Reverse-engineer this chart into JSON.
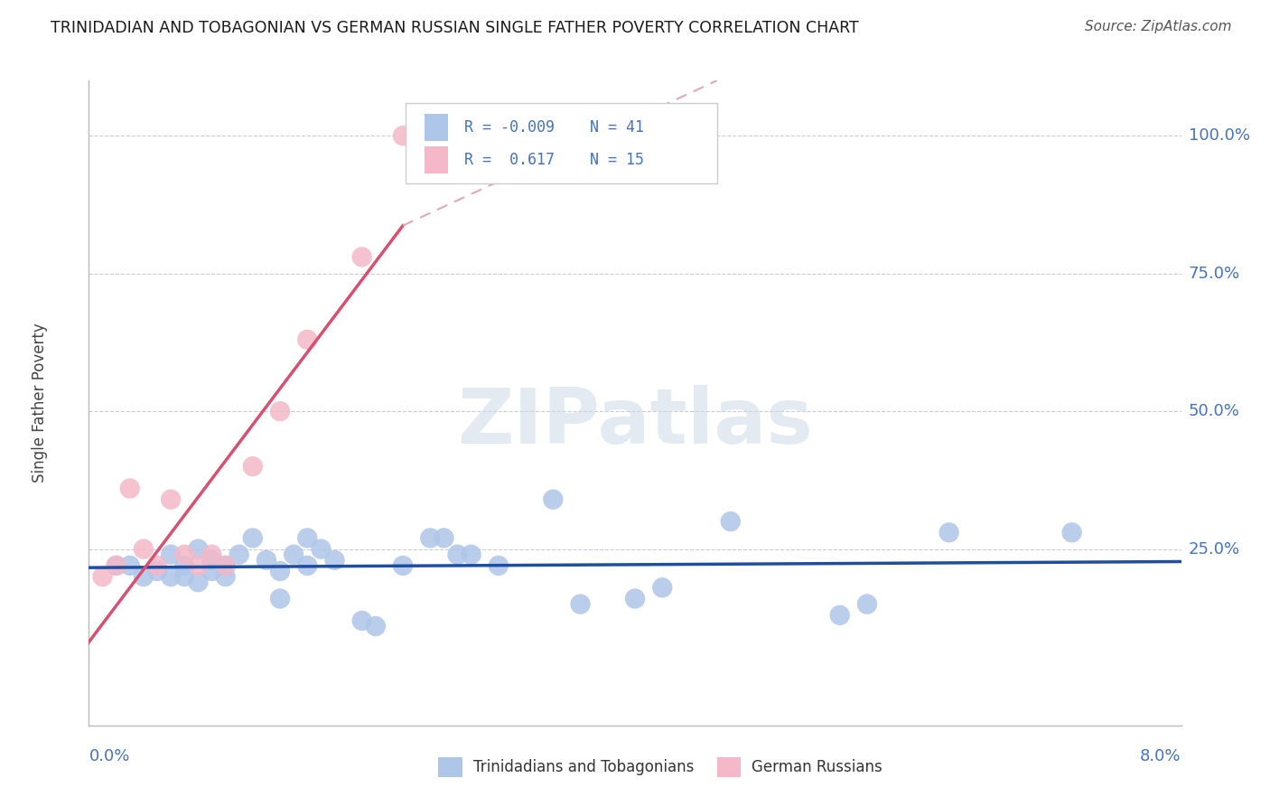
{
  "title": "TRINIDADIAN AND TOBAGONIAN VS GERMAN RUSSIAN SINGLE FATHER POVERTY CORRELATION CHART",
  "source": "Source: ZipAtlas.com",
  "ylabel": "Single Father Poverty",
  "ytick_labels": [
    "100.0%",
    "75.0%",
    "50.0%",
    "25.0%"
  ],
  "ytick_values": [
    1.0,
    0.75,
    0.5,
    0.25
  ],
  "xlim": [
    0.0,
    0.08
  ],
  "ylim": [
    -0.07,
    1.1
  ],
  "legend_blue_r": "R = -0.009",
  "legend_blue_n": "N = 41",
  "legend_pink_r": "R =  0.617",
  "legend_pink_n": "N = 15",
  "blue_color": "#aec6e8",
  "pink_color": "#f4b8c8",
  "blue_line_color": "#1f4e9e",
  "pink_line_color": "#d94f70",
  "pink_dash_color": "#e0a8b8",
  "label_color": "#4472C4",
  "title_color": "#1a1a1a",
  "source_color": "#555555",
  "watermark": "ZIPatlas",
  "watermark_color": "#ccd9e8",
  "blue_scatter_x": [
    0.002,
    0.003,
    0.004,
    0.005,
    0.006,
    0.006,
    0.007,
    0.007,
    0.008,
    0.008,
    0.009,
    0.009,
    0.01,
    0.01,
    0.011,
    0.012,
    0.013,
    0.014,
    0.014,
    0.015,
    0.016,
    0.016,
    0.017,
    0.018,
    0.02,
    0.021,
    0.023,
    0.025,
    0.026,
    0.027,
    0.028,
    0.03,
    0.034,
    0.036,
    0.04,
    0.042,
    0.047,
    0.055,
    0.057,
    0.063,
    0.072
  ],
  "blue_scatter_y": [
    0.22,
    0.22,
    0.2,
    0.21,
    0.2,
    0.24,
    0.2,
    0.22,
    0.19,
    0.25,
    0.23,
    0.21,
    0.22,
    0.2,
    0.24,
    0.27,
    0.23,
    0.21,
    0.16,
    0.24,
    0.22,
    0.27,
    0.25,
    0.23,
    0.12,
    0.11,
    0.22,
    0.27,
    0.27,
    0.24,
    0.24,
    0.22,
    0.34,
    0.15,
    0.16,
    0.18,
    0.3,
    0.13,
    0.15,
    0.28,
    0.28
  ],
  "pink_scatter_x": [
    0.001,
    0.002,
    0.003,
    0.004,
    0.005,
    0.006,
    0.007,
    0.008,
    0.009,
    0.01,
    0.012,
    0.014,
    0.016,
    0.02,
    0.023
  ],
  "pink_scatter_y": [
    0.2,
    0.22,
    0.36,
    0.25,
    0.22,
    0.34,
    0.24,
    0.22,
    0.24,
    0.22,
    0.4,
    0.5,
    0.63,
    0.78,
    1.0
  ],
  "bottom_label_blue": "Trinidadians and Tobagonians",
  "bottom_label_pink": "German Russians"
}
